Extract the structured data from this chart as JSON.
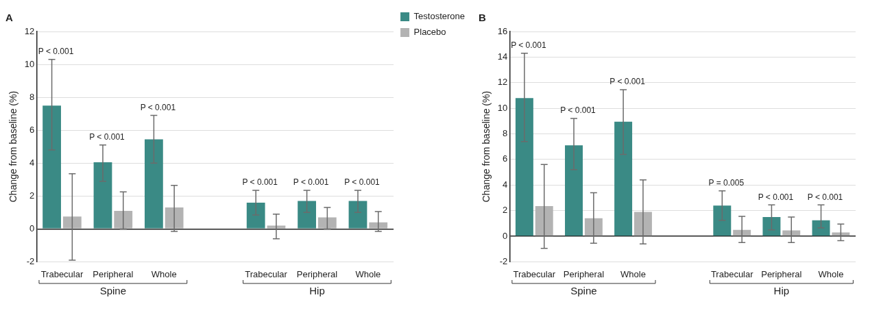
{
  "chart_data": [
    {
      "type": "bar",
      "title": "A",
      "ylabel": "Change from baseline (%)",
      "categories": [
        "Trabecular",
        "Peripheral",
        "Whole",
        null,
        "Trabecular",
        "Peripheral",
        "Whole"
      ],
      "series": [
        {
          "name": "Testosterone",
          "color": "#3a8a85",
          "values": [
            7.5,
            4.05,
            5.45,
            null,
            1.6,
            1.7,
            1.7
          ],
          "errors": [
            [
              4.8,
              10.3
            ],
            [
              2.9,
              5.1
            ],
            [
              4.0,
              6.9
            ],
            null,
            [
              0.85,
              2.35
            ],
            [
              1.0,
              2.35
            ],
            [
              1.0,
              2.35
            ]
          ]
        },
        {
          "name": "Placebo",
          "color": "#b3b3b3",
          "values": [
            0.75,
            1.1,
            1.3,
            null,
            0.2,
            0.7,
            0.4
          ],
          "errors": [
            [
              -1.9,
              3.35
            ],
            [
              0,
              2.25
            ],
            [
              -0.15,
              2.65
            ],
            null,
            [
              -0.6,
              0.9
            ],
            [
              0,
              1.3
            ],
            [
              -0.15,
              1.05
            ]
          ]
        }
      ],
      "ylim": [
        -2,
        12
      ],
      "yticks": [
        -2,
        0,
        2,
        4,
        6,
        8,
        10,
        12
      ],
      "grid": "y",
      "legend": "right",
      "annotations": [
        "Spine",
        "Hip",
        "P < 0.001",
        "P < 0.001",
        "P < 0.001",
        "P < 0.001",
        "P < 0.001",
        "P < 0.001"
      ]
    },
    {
      "type": "bar",
      "title": "B",
      "ylabel": "Change from baseline (%)",
      "categories": [
        "Trabecular",
        "Peripheral",
        "Whole",
        null,
        "Trabecular",
        "Peripheral",
        "Whole"
      ],
      "series": [
        {
          "color": "#3a8a85",
          "values": [
            10.8,
            7.1,
            8.95,
            null,
            2.4,
            1.5,
            1.25
          ],
          "errors": [
            [
              7.4,
              14.3
            ],
            [
              5.2,
              9.2
            ],
            [
              6.4,
              11.45
            ],
            null,
            [
              1.25,
              3.55
            ],
            [
              0.5,
              2.45
            ],
            [
              0.65,
              2.45
            ]
          ]
        },
        {
          "color": "#b3b3b3",
          "values": [
            2.35,
            1.4,
            1.9,
            null,
            0.5,
            0.45,
            0.3
          ],
          "errors": [
            [
              -0.95,
              5.6
            ],
            [
              -0.55,
              3.4
            ],
            [
              -0.6,
              4.4
            ],
            null,
            [
              -0.5,
              1.55
            ],
            [
              -0.5,
              1.5
            ],
            [
              -0.35,
              0.95
            ]
          ]
        }
      ],
      "ylim": [
        -2,
        16
      ],
      "yticks": [
        -2,
        0,
        2,
        4,
        6,
        8,
        10,
        12,
        14,
        16
      ],
      "grid": "y",
      "annotations": [
        "Spine",
        "Hip",
        "P < 0.001",
        "P < 0.001",
        "P < 0.001",
        "P = 0.005",
        "P < 0.001",
        "P < 0.001"
      ]
    }
  ]
}
